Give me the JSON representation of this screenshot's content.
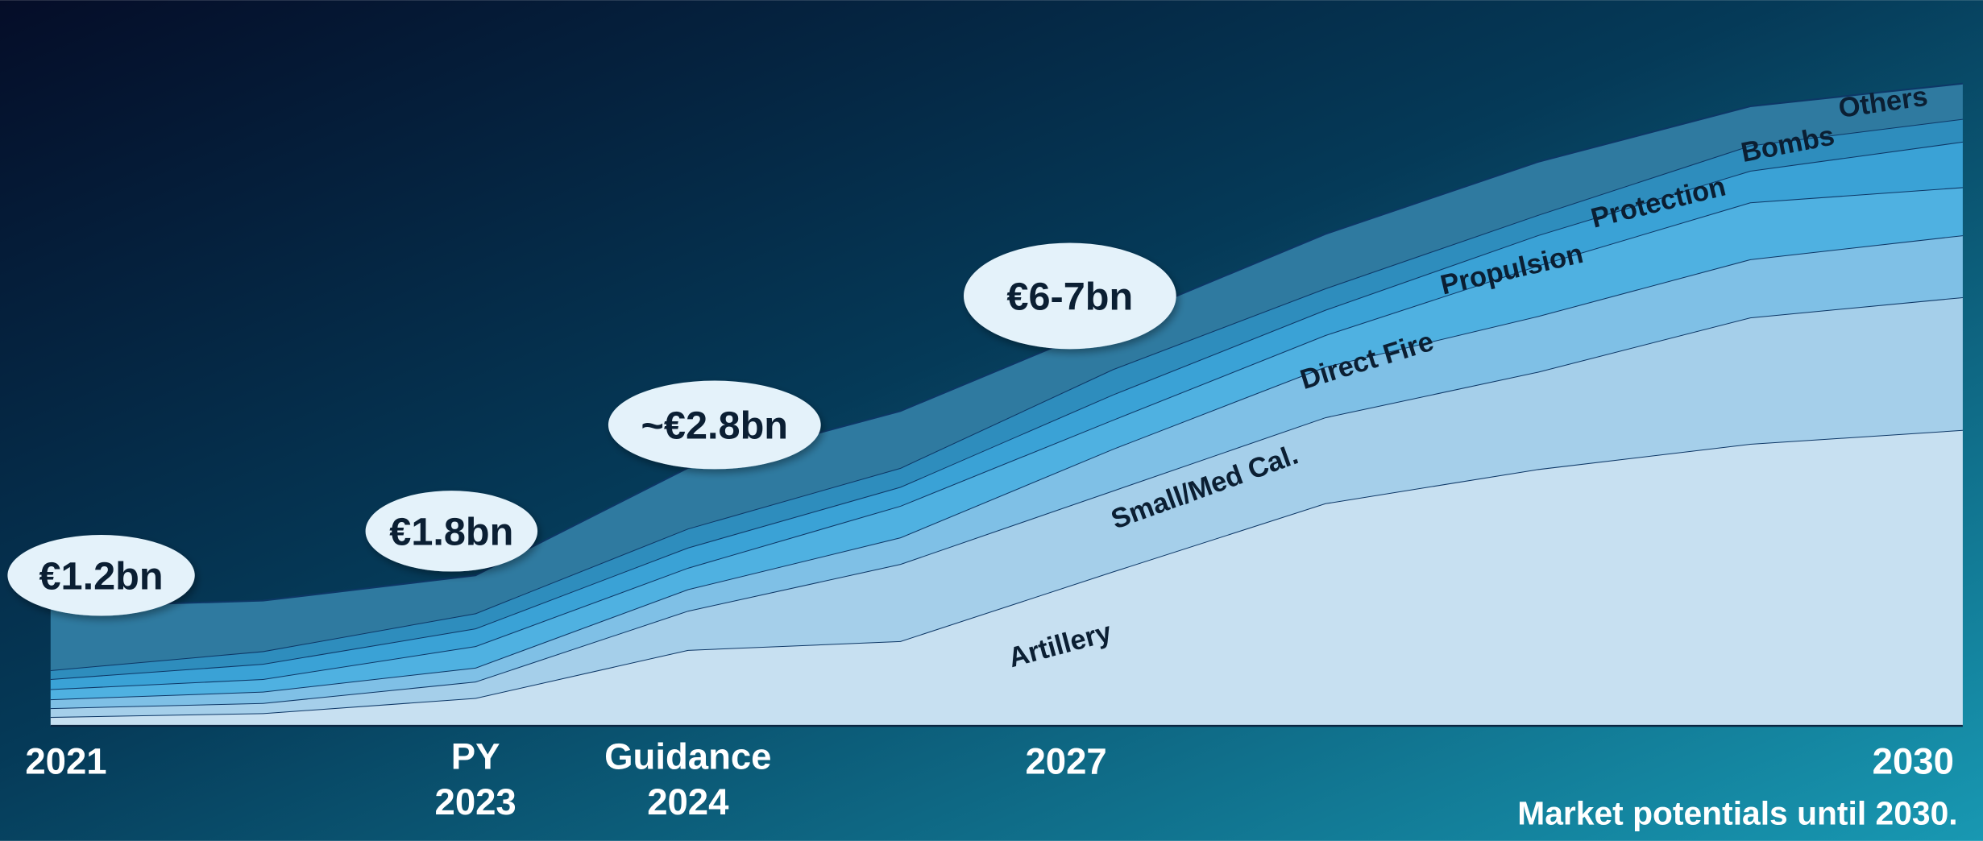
{
  "chart_data": {
    "type": "stacked_area",
    "categories": [
      "2021",
      null,
      "PY 2023",
      "Guidance 2024",
      null,
      "2027",
      null,
      null,
      null,
      "2030"
    ],
    "ylim": [
      0,
      51
    ],
    "series": [
      {
        "name": "Artillery",
        "color": "#c7e0f1",
        "values": [
          0.7,
          1.0,
          2.2,
          6.0,
          6.7,
          12.2,
          17.6,
          20.3,
          22.3,
          23.4
        ]
      },
      {
        "name": "Small/Med Cal.",
        "color": "#a5cfea",
        "values": [
          0.7,
          0.8,
          1.3,
          3.1,
          6.1,
          6.4,
          6.8,
          7.7,
          10.0,
          10.5
        ]
      },
      {
        "name": "Direct Fire",
        "color": "#7fc0e6",
        "values": [
          0.7,
          0.9,
          1.1,
          1.7,
          2.1,
          3.3,
          4.0,
          4.4,
          4.6,
          4.9
        ]
      },
      {
        "name": "Propulsion",
        "color": "#4fb1e1",
        "values": [
          0.8,
          1.0,
          1.7,
          1.7,
          2.5,
          2.3,
          2.5,
          4.0,
          4.5,
          3.8
        ]
      },
      {
        "name": "Protection",
        "color": "#3aa2d6",
        "values": [
          0.8,
          1.2,
          1.4,
          1.6,
          1.5,
          2.0,
          2.0,
          2.4,
          2.5,
          3.6
        ]
      },
      {
        "name": "Bombs",
        "color": "#2e8dbd",
        "values": [
          0.7,
          1.0,
          1.2,
          1.5,
          1.5,
          2.0,
          1.7,
          1.6,
          2.0,
          1.8
        ]
      },
      {
        "name": "Others",
        "color": "#2f7aa0",
        "values": [
          5.0,
          4.0,
          3.0,
          4.8,
          4.5,
          3.7,
          4.3,
          4.2,
          3.1,
          2.8
        ]
      }
    ],
    "line_color": "#0d3766",
    "annotations": [
      "€1.2bn",
      "€1.8bn",
      "~€2.8bn",
      "€6-7bn"
    ],
    "footnote": "Market potentials until 2030."
  }
}
